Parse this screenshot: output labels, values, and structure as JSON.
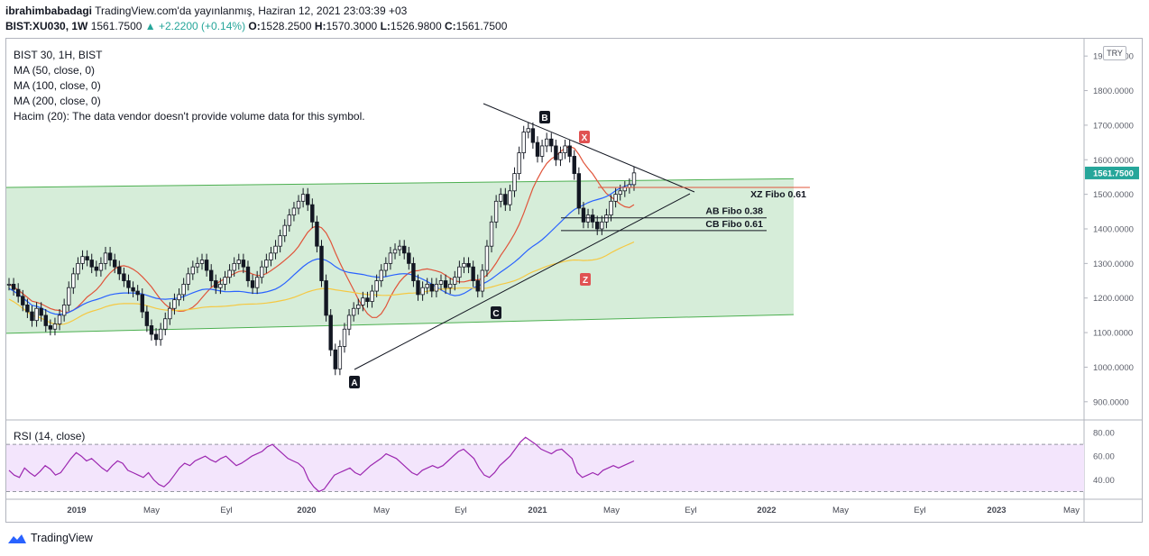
{
  "header": {
    "author": "ibrahimbabadagi",
    "published": "TradingView.com'da yayınlanmış, Haziran 12, 2021 23:03:39 +03",
    "symbol": "BIST:XU030, 1W",
    "last": "1561.7500",
    "change": "▲ +2.2200 (+0.14%)",
    "o_label": "O:",
    "o_value": "1528.2500",
    "h_label": "H:",
    "h_value": "1570.3000",
    "l_label": "L:",
    "l_value": "1526.9800",
    "c_label": "C:",
    "c_value": "1561.7500"
  },
  "legend": {
    "title": "BIST 30, 1H, BIST",
    "ma50": "MA (50, close, 0)",
    "ma100": "MA (100, close, 0)",
    "ma200": "MA (200, close, 0)",
    "volume": "Hacim (20): The data vendor doesn't provide volume data for this symbol."
  },
  "currency_badge": "TRY",
  "rsi_label": "RSI (14, close)",
  "footer": {
    "brand": "TradingView"
  },
  "colors": {
    "channel_fill": "#d6edd9",
    "channel_line": "#4caf50",
    "ma50": "#e0543a",
    "ma100": "#2962ff",
    "ma200": "#f5c842",
    "rsi_line": "#9c27b0",
    "rsi_fill": "#f3e5fc",
    "up": "#26a69a",
    "candle": "#131722",
    "price_badge": "#26a69a",
    "marker_red": "#e05252"
  },
  "chart_data": {
    "type": "candlestick",
    "price_axis": {
      "ticks": [
        "1900.0000",
        "1800.0000",
        "1700.0000",
        "1600.0000",
        "1500.0000",
        "1400.0000",
        "1300.0000",
        "1200.0000",
        "1100.0000",
        "1000.0000",
        "900.0000"
      ],
      "ylim": [
        850,
        1950
      ],
      "current": "1561.7500"
    },
    "rsi_axis": {
      "ticks": [
        "80.00",
        "60.00",
        "40.00"
      ],
      "ylim": [
        25,
        90
      ],
      "bands": [
        70,
        30
      ]
    },
    "time_axis": {
      "ticks": [
        "2019",
        "May",
        "Eyl",
        "2020",
        "May",
        "Eyl",
        "2021",
        "May",
        "Eyl",
        "2022",
        "May",
        "Eyl",
        "2023",
        "May"
      ]
    },
    "close_series": [
      1240,
      1225,
      1205,
      1180,
      1160,
      1135,
      1170,
      1150,
      1120,
      1110,
      1125,
      1150,
      1180,
      1230,
      1270,
      1300,
      1320,
      1310,
      1290,
      1280,
      1300,
      1330,
      1310,
      1290,
      1270,
      1250,
      1230,
      1220,
      1210,
      1160,
      1120,
      1095,
      1080,
      1110,
      1140,
      1170,
      1195,
      1210,
      1240,
      1270,
      1290,
      1300,
      1310,
      1280,
      1250,
      1230,
      1240,
      1260,
      1280,
      1300,
      1310,
      1290,
      1250,
      1230,
      1260,
      1290,
      1310,
      1330,
      1350,
      1380,
      1410,
      1440,
      1460,
      1480,
      1500,
      1470,
      1420,
      1350,
      1250,
      1150,
      1050,
      995,
      1060,
      1110,
      1150,
      1170,
      1180,
      1200,
      1190,
      1220,
      1250,
      1280,
      1300,
      1330,
      1340,
      1350,
      1330,
      1300,
      1250,
      1210,
      1230,
      1240,
      1220,
      1240,
      1250,
      1230,
      1240,
      1260,
      1290,
      1300,
      1290,
      1250,
      1220,
      1280,
      1350,
      1420,
      1480,
      1500,
      1470,
      1510,
      1560,
      1620,
      1680,
      1690,
      1650,
      1610,
      1640,
      1660,
      1640,
      1600,
      1620,
      1640,
      1610,
      1560,
      1460,
      1420,
      1440,
      1420,
      1400,
      1420,
      1440,
      1480,
      1500,
      1510,
      1520,
      1528,
      1562
    ],
    "ma50_series_start": 0,
    "rsi_series": [
      48,
      44,
      42,
      50,
      46,
      43,
      47,
      52,
      49,
      44,
      46,
      52,
      58,
      63,
      60,
      56,
      58,
      54,
      50,
      47,
      52,
      56,
      54,
      48,
      46,
      44,
      42,
      46,
      40,
      36,
      34,
      38,
      44,
      50,
      54,
      52,
      56,
      58,
      60,
      57,
      55,
      58,
      60,
      56,
      52,
      54,
      57,
      60,
      62,
      64,
      68,
      70,
      66,
      62,
      58,
      56,
      54,
      50,
      40,
      34,
      30,
      32,
      38,
      44,
      46,
      48,
      50,
      46,
      44,
      48,
      52,
      55,
      58,
      62,
      60,
      58,
      54,
      50,
      46,
      44,
      48,
      50,
      52,
      50,
      52,
      56,
      60,
      64,
      66,
      62,
      58,
      50,
      44,
      42,
      46,
      52,
      56,
      60,
      66,
      72,
      76,
      73,
      70,
      66,
      64,
      62,
      65,
      66,
      62,
      58,
      46,
      42,
      44,
      46,
      44,
      48,
      50,
      52,
      50,
      52,
      54,
      56
    ],
    "markers": [
      {
        "label": "A",
        "price": 985
      },
      {
        "label": "B",
        "price": 1718
      },
      {
        "label": "C",
        "price": 1190
      },
      {
        "label": "X",
        "price": 1660
      },
      {
        "label": "Z",
        "price": 1275
      }
    ],
    "fibo_levels": [
      {
        "label": "XZ Fibo 0.61",
        "price": 1520
      },
      {
        "label": "AB Fibo 0.38",
        "price": 1432
      },
      {
        "label": "CB Fibo 0.61",
        "price": 1395
      }
    ]
  }
}
